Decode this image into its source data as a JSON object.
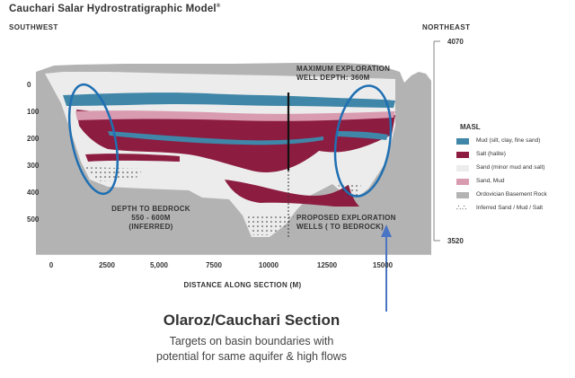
{
  "title": "Cauchari Salar Hydrostratigraphic Model",
  "title_mark": "®",
  "directions": {
    "left": "SOUTHWEST",
    "right": "NORTHEAST"
  },
  "elevations": {
    "top": "4070",
    "bottom": "3520"
  },
  "y_ticks": [
    "0",
    "100",
    "200",
    "300",
    "400",
    "500"
  ],
  "x_ticks": [
    "0",
    "2500",
    "5,000",
    "7500",
    "10000",
    "12500",
    "15000"
  ],
  "x_label": "DISTANCE ALONG SECTION (M)",
  "annotations": {
    "max_depth_1": "MAXIMUM EXPLORATION",
    "max_depth_2": "WELL DEPTH: 360M",
    "bedrock_1": "DEPTH TO BEDROCK",
    "bedrock_2": "550 - 600M",
    "bedrock_3": "(INFERRED)",
    "proposed_1": "PROPOSED EXPLORATION",
    "proposed_2": "WELLS ( TO BEDROCK)"
  },
  "legend": {
    "unit": "MASL",
    "items": [
      {
        "label": "Mud (silt, clay, fine sand)",
        "color": "#3f86a8"
      },
      {
        "label": "Salt (halite)",
        "color": "#8c1c40"
      },
      {
        "label": "Sand (minor mud and salt)",
        "color": "#ececec"
      },
      {
        "label": "Sand, Mud",
        "color": "#d99bb0"
      },
      {
        "label": "Ordovician Basement Rock",
        "color": "#b3b3b3"
      },
      {
        "label": "Inferred Sand / Mud / Salt",
        "color": "dots"
      }
    ]
  },
  "caption": {
    "title": "Olaroz/Cauchari Section",
    "line1": "Targets on basin boundaries with",
    "line2": "potential for same aquifer & high flows"
  },
  "colors": {
    "basement": "#b3b3b3",
    "sand": "#ececec",
    "mud": "#3f86a8",
    "salt": "#8c1c40",
    "sandmud": "#d99bb0",
    "ellipse": "#1f6fb2",
    "arrow": "#4a74c4"
  }
}
